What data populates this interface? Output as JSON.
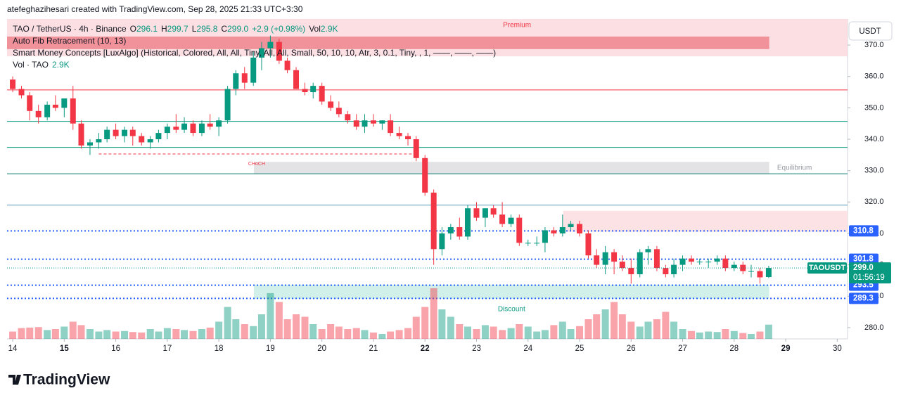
{
  "page": {
    "attribution": "atefeghazihesari created with TradingView.com, Sep 28, 2025 21:33 UTC+3:30",
    "brand": "TradingView",
    "currency_button": "USDT"
  },
  "chart_data": {
    "type": "candlestick",
    "symbol": "TAO / TetherUS · 4h · Binance",
    "legend": {
      "O": "O",
      "o": "296.1",
      "H": "H",
      "h": "299.7",
      "L": "L",
      "l": "295.8",
      "C": "C",
      "c": "299.0",
      "chg": "+2.9 (+0.98%)",
      "vol": "Vol",
      "v": "2.9K"
    },
    "indicators": [
      "Auto Fib Retracement (10, 13)",
      "Smart Money Concepts [LuxAlgo] (Historical, Colored, All, All, Tiny, All, All, Small, 50, 10, 10, Atr, 3, 0.1, Tiny, , 1, ——, ——, ——)"
    ],
    "volume_name": "Vol · TAO",
    "volume_label": "2.9K",
    "up_color": "#089981",
    "down_color": "#f23645",
    "xlim": [
      13.89,
      30.2
    ],
    "ylim": [
      276.4,
      378.3
    ],
    "xticks": [
      14,
      15,
      16,
      17,
      18,
      19,
      20,
      21,
      22,
      23,
      24,
      25,
      26,
      27,
      28,
      29,
      30
    ],
    "yticks": [
      280,
      290,
      300,
      310,
      320,
      330,
      340,
      350,
      360,
      370
    ],
    "ytick_labels": [
      "280.0",
      "290.0",
      "300.0",
      "310.0",
      "320.0",
      "330.0",
      "340.0",
      "350.0",
      "360.0",
      "370.0"
    ],
    "x": [
      14,
      14.17,
      14.33,
      14.5,
      14.67,
      14.83,
      15,
      15.17,
      15.33,
      15.5,
      15.67,
      15.83,
      16,
      16.17,
      16.33,
      16.5,
      16.67,
      16.83,
      17,
      17.17,
      17.33,
      17.5,
      17.67,
      17.83,
      18,
      18.17,
      18.33,
      18.5,
      18.67,
      18.83,
      19,
      19.17,
      19.33,
      19.5,
      19.67,
      19.83,
      20,
      20.17,
      20.33,
      20.5,
      20.67,
      20.83,
      21,
      21.17,
      21.33,
      21.5,
      21.67,
      21.83,
      22,
      22.17,
      22.33,
      22.5,
      22.67,
      22.83,
      23,
      23.17,
      23.33,
      23.5,
      23.67,
      23.83,
      24,
      24.17,
      24.33,
      24.5,
      24.67,
      24.83,
      25,
      25.17,
      25.33,
      25.5,
      25.67,
      25.83,
      26,
      26.17,
      26.33,
      26.5,
      26.67,
      26.83,
      27,
      27.17,
      27.33,
      27.5,
      27.67,
      27.83,
      28,
      28.17,
      28.33,
      28.5,
      28.67
    ],
    "open": [
      359,
      356,
      354,
      349,
      347,
      351,
      350,
      353,
      345,
      338,
      339,
      340,
      343,
      341,
      343,
      341,
      339,
      340,
      342,
      344,
      343,
      345,
      342,
      345,
      344,
      346,
      356,
      361,
      358,
      366,
      369,
      371,
      365,
      362,
      356,
      355,
      357,
      352,
      350,
      348,
      346,
      344,
      346,
      345,
      346,
      342,
      341,
      340,
      334,
      323,
      305,
      310,
      312,
      309,
      318,
      315,
      318,
      316,
      313,
      315,
      307,
      307,
      307,
      311,
      310,
      312,
      313,
      310,
      303,
      300,
      304,
      301,
      299,
      297,
      304,
      305,
      299,
      297,
      300,
      302,
      301,
      301,
      301,
      302,
      299,
      300,
      298,
      298,
      296.1
    ],
    "high": [
      360,
      357,
      355,
      351,
      352,
      354,
      353,
      357,
      346,
      340,
      342,
      344,
      345,
      344,
      344,
      342,
      341,
      343,
      345,
      348,
      347,
      346,
      346,
      348,
      347,
      357,
      362,
      363,
      368,
      371,
      373,
      372,
      366,
      363,
      358,
      358,
      358,
      354,
      352,
      349,
      348,
      348,
      348,
      346,
      348,
      344,
      342,
      341,
      335,
      324,
      312,
      313,
      315,
      319,
      320,
      318,
      319,
      320,
      316,
      316,
      308,
      309,
      312,
      312,
      316,
      314,
      314,
      311,
      305,
      306,
      305,
      303,
      302,
      305,
      306,
      306,
      300,
      302,
      303,
      303,
      302,
      302,
      303,
      303,
      301,
      301,
      300,
      299,
      299.7
    ],
    "low": [
      355,
      353,
      346,
      345,
      346,
      349,
      347,
      343,
      337,
      335,
      337,
      339,
      340,
      339,
      338,
      338,
      337,
      339,
      340,
      342,
      342,
      341,
      341,
      343,
      341,
      345,
      354,
      356,
      357,
      362,
      366,
      364,
      361,
      356,
      354,
      353,
      351,
      349,
      347,
      345,
      343,
      342,
      344,
      343,
      341,
      340,
      338,
      333,
      322,
      300,
      303,
      308,
      308,
      308,
      314,
      312,
      315,
      312,
      312,
      306,
      306,
      306,
      304,
      309,
      309,
      311,
      309,
      302,
      299,
      297,
      297,
      298,
      294,
      296,
      300,
      298,
      296,
      296,
      298,
      300,
      300,
      299,
      300,
      298,
      298,
      297,
      296,
      294,
      295.8
    ],
    "close": [
      356,
      354,
      349,
      347,
      351,
      350,
      353,
      345,
      338,
      339,
      340,
      343,
      341,
      343,
      341,
      339,
      340,
      342,
      344,
      343,
      345,
      342,
      345,
      344,
      346,
      356,
      361,
      358,
      366,
      369,
      371,
      365,
      362,
      356,
      355,
      357,
      352,
      350,
      348,
      346,
      344,
      346,
      345,
      346,
      342,
      341,
      340,
      334,
      323,
      305,
      310,
      312,
      309,
      318,
      315,
      318,
      316,
      313,
      315,
      307,
      307,
      307,
      311,
      310,
      312,
      313,
      310,
      303,
      300,
      304,
      301,
      299,
      297,
      304,
      305,
      299,
      297,
      300,
      302,
      301,
      301,
      301,
      302,
      299,
      300,
      298,
      298,
      296,
      299.0
    ],
    "volume": [
      1.5,
      2.2,
      2.3,
      2.4,
      1.8,
      2.0,
      2.5,
      3.5,
      2.8,
      2.0,
      1.5,
      1.8,
      1.5,
      1.6,
      1.4,
      1.3,
      2.0,
      1.5,
      2.2,
      2.0,
      1.8,
      1.6,
      2.0,
      2.3,
      3.5,
      6.5,
      4.0,
      3.0,
      2.6,
      5.0,
      9.3,
      7.5,
      4.0,
      5.0,
      4.5,
      3.0,
      2.0,
      3.0,
      2.5,
      2.0,
      2.2,
      1.8,
      1.3,
      1.0,
      1.5,
      1.8,
      2.2,
      4.5,
      6.5,
      10.3,
      6.0,
      4.5,
      3.0,
      2.5,
      2.0,
      2.8,
      2.5,
      1.8,
      2.2,
      3.0,
      2.5,
      1.5,
      1.8,
      2.8,
      3.5,
      2.0,
      2.6,
      4.0,
      5.0,
      6.0,
      7.5,
      5.0,
      3.5,
      2.5,
      3.5,
      4.0,
      5.5,
      3.5,
      2.0,
      1.6,
      1.3,
      1.5,
      1.4,
      2.0,
      1.6,
      1.2,
      1.0,
      1.5,
      2.9
    ],
    "zones": [
      {
        "name": "Premium",
        "top": 378.3,
        "bottom": 366.4,
        "x0": 13.89,
        "x1": 30.2,
        "color": "#fbdcdf",
        "label_color": "#f23645"
      },
      {
        "top": 372.7,
        "bottom": 368.7,
        "x0": 13.89,
        "x1": 28.68,
        "color": "#ef8a93"
      },
      {
        "top": 317.2,
        "bottom": 310.5,
        "x0": 24.68,
        "x1": 30.2,
        "color": "#fcdfe1"
      },
      {
        "name": "Equilibrium",
        "top": 332.8,
        "bottom": 329.0,
        "x0": 18.68,
        "x1": 28.68,
        "color": "#e0e0e3",
        "label_color": "#9598a1"
      },
      {
        "name": "Discount",
        "top": 293.7,
        "bottom": 289.2,
        "x0": 18.68,
        "x1": 28.68,
        "color": "#cdeee8",
        "label_color": "#089981"
      }
    ],
    "levels": [
      {
        "value": 355.7,
        "color": "#f23645"
      },
      {
        "value": 345.7,
        "color": "#089981"
      },
      {
        "value": 337.4,
        "color": "#089981"
      },
      {
        "value": 329.0,
        "color": "#0b7e6e"
      },
      {
        "value": 319.0,
        "color": "#5b9cc0"
      },
      {
        "value": 310.8,
        "color": "#2962ff",
        "dotted": true,
        "label": "310.8"
      },
      {
        "value": 301.8,
        "color": "#2962ff",
        "dotted": true,
        "label": "301.8"
      },
      {
        "value": 293.5,
        "color": "#2962ff",
        "dotted": true,
        "label": "293.5"
      },
      {
        "value": 289.3,
        "color": "#2962ff",
        "dotted": true,
        "label": "289.3"
      }
    ],
    "choch": {
      "label": "CHoCH",
      "value": 335.3,
      "x0": 15.67,
      "x1": 21.8
    },
    "last": {
      "value": 299.0,
      "symbol": "TAOUSDT",
      "price": "299.0",
      "countdown": "01:56:19"
    }
  }
}
